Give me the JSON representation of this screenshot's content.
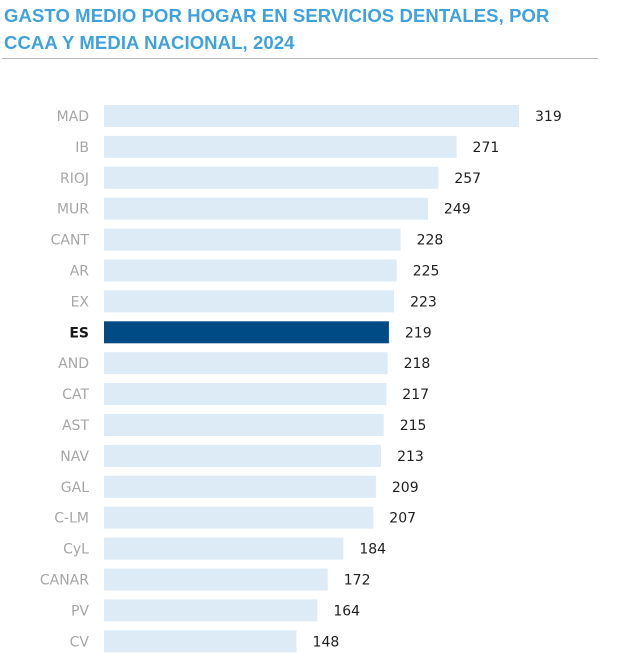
{
  "chart_data": {
    "type": "bar",
    "orientation": "horizontal",
    "title": "GASTO MEDIO POR HOGAR EN SERVICIOS DENTALES, POR CCAA Y MEDIA NACIONAL, 2024",
    "categories": [
      "MAD",
      "IB",
      "RIOJ",
      "MUR",
      "CANT",
      "AR",
      "EX",
      "ES",
      "AND",
      "CAT",
      "AST",
      "NAV",
      "GAL",
      "C-LM",
      "CyL",
      "CANAR",
      "PV",
      "CV"
    ],
    "values": [
      319,
      271,
      257,
      249,
      228,
      225,
      223,
      219,
      218,
      217,
      215,
      213,
      209,
      207,
      184,
      172,
      164,
      148
    ],
    "highlight": "ES",
    "xlim": [
      0,
      319
    ],
    "grid": false,
    "legend": "none",
    "colors": {
      "bar": "#ddebf7",
      "highlight_bar": "#004a86",
      "title": "#3fa2dc",
      "category_label": "#a6a6a6",
      "highlight_label": "#1a1a1a",
      "value_label": "#1f1f1f",
      "rule": "#b9b9b9"
    }
  }
}
